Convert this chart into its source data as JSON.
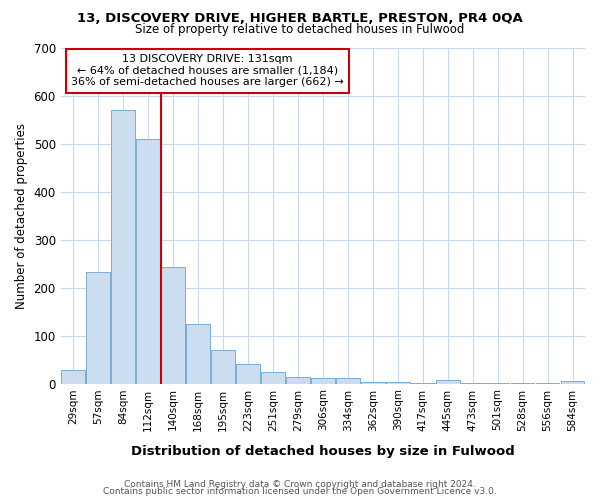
{
  "title1": "13, DISCOVERY DRIVE, HIGHER BARTLE, PRESTON, PR4 0QA",
  "title2": "Size of property relative to detached houses in Fulwood",
  "xlabel": "Distribution of detached houses by size in Fulwood",
  "ylabel": "Number of detached properties",
  "categories": [
    "29sqm",
    "57sqm",
    "84sqm",
    "112sqm",
    "140sqm",
    "168sqm",
    "195sqm",
    "223sqm",
    "251sqm",
    "279sqm",
    "306sqm",
    "334sqm",
    "362sqm",
    "390sqm",
    "417sqm",
    "445sqm",
    "473sqm",
    "501sqm",
    "528sqm",
    "556sqm",
    "584sqm"
  ],
  "values": [
    28,
    232,
    570,
    510,
    243,
    125,
    70,
    40,
    25,
    14,
    11,
    12,
    4,
    4,
    2,
    8,
    1,
    1,
    1,
    1,
    6
  ],
  "bar_color": "#ccddf0",
  "bar_edgecolor": "#7aaed4",
  "vline_x": 3.5,
  "vline_color": "#cc0000",
  "annotation_line1": "13 DISCOVERY DRIVE: 131sqm",
  "annotation_line2": "← 64% of detached houses are smaller (1,184)",
  "annotation_line3": "36% of semi-detached houses are larger (662) →",
  "annotation_box_edgecolor": "#cc0000",
  "footer1": "Contains HM Land Registry data © Crown copyright and database right 2024.",
  "footer2": "Contains public sector information licensed under the Open Government Licence v3.0.",
  "ylim": [
    0,
    700
  ],
  "yticks": [
    0,
    100,
    200,
    300,
    400,
    500,
    600,
    700
  ],
  "fig_bg": "#ffffff",
  "plot_bg": "#ffffff",
  "grid_color": "#c8d8ec"
}
